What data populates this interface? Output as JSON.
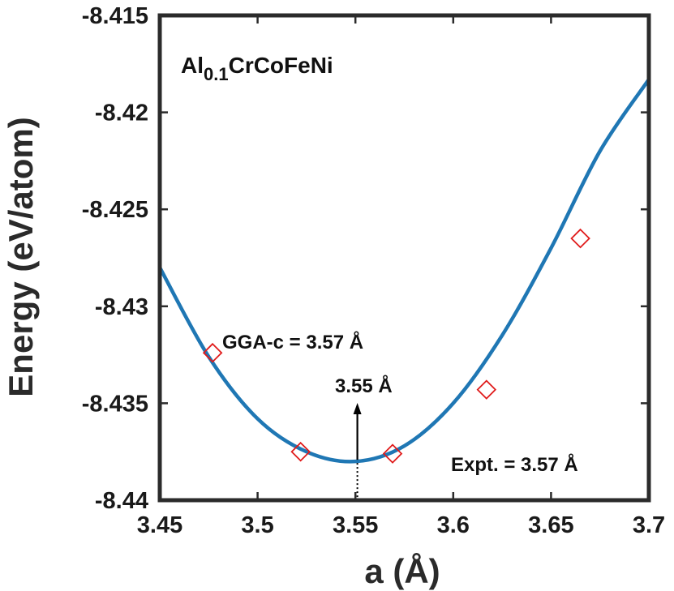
{
  "chart_data": {
    "type": "line",
    "xlabel": "a (Å)",
    "ylabel": "Energy (eV/atom)",
    "xlim": [
      3.45,
      3.7
    ],
    "ylim": [
      -8.44,
      -8.415
    ],
    "xticks": [
      "3.45",
      "3.5",
      "3.55",
      "3.6",
      "3.65",
      "3.7"
    ],
    "yticks": [
      "-8.44",
      "-8.435",
      "-8.43",
      "-8.425",
      "-8.42",
      "-8.415"
    ],
    "grid": false,
    "composition": {
      "base": "Al",
      "subscript": "0.1",
      "rest": "CrCoFeNi"
    },
    "annotations": {
      "gga": "GGA-c = 3.57 Å",
      "fit_min": "3.55 Å",
      "expt": "Expt. = 3.57 Å"
    },
    "fit_curve": {
      "color": "#1f77b4",
      "x": [
        3.45,
        3.475,
        3.5,
        3.525,
        3.55,
        3.575,
        3.6,
        3.625,
        3.65,
        3.675,
        3.7
      ],
      "y": [
        -8.428,
        -8.4326,
        -8.4358,
        -8.4375,
        -8.438,
        -8.4372,
        -8.435,
        -8.4315,
        -8.427,
        -8.422,
        -8.4183
      ]
    },
    "data_points": {
      "marker": "diamond",
      "color": "#e01b1b",
      "x": [
        3.477,
        3.522,
        3.569,
        3.617,
        3.665
      ],
      "y": [
        -8.4324,
        -8.4375,
        -8.4376,
        -8.4343,
        -8.4265
      ]
    },
    "minimum": {
      "x": 3.551,
      "y": -8.438
    }
  }
}
